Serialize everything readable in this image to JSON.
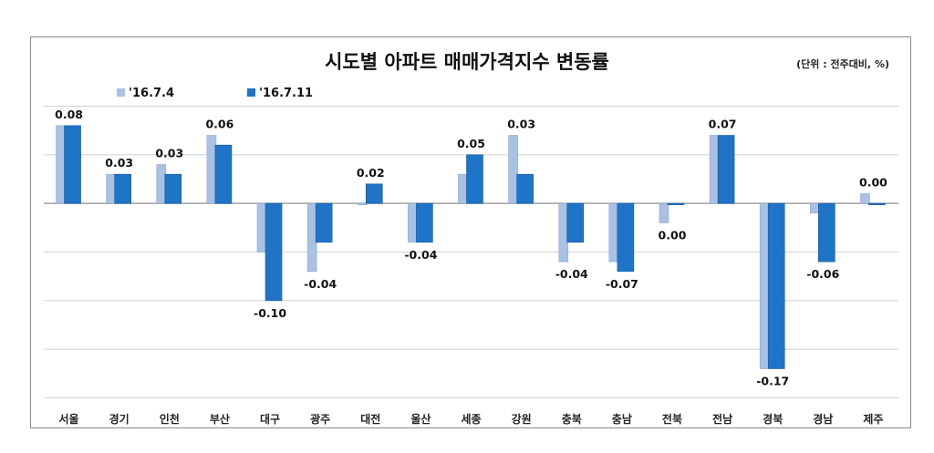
{
  "chart_data": {
    "type": "bar",
    "title": "시도별 아파트 매매가격지수 변동률",
    "unit_note": "(단위 : 전주대비, %)",
    "categories": [
      "서울",
      "경기",
      "인천",
      "부산",
      "대구",
      "광주",
      "대전",
      "울산",
      "세종",
      "강원",
      "충북",
      "충남",
      "전북",
      "전남",
      "경북",
      "경남",
      "제주"
    ],
    "series": [
      {
        "name": "'16.7.4",
        "color": "#a9c1e3",
        "values": [
          0.08,
          0.03,
          0.04,
          0.07,
          -0.05,
          -0.07,
          0.0,
          -0.04,
          0.03,
          0.07,
          -0.06,
          -0.06,
          -0.02,
          0.07,
          -0.17,
          -0.01,
          0.01
        ]
      },
      {
        "name": "'16.7.11",
        "color": "#1f74c8",
        "values": [
          0.08,
          0.03,
          0.03,
          0.06,
          -0.1,
          -0.04,
          0.02,
          -0.04,
          0.05,
          0.03,
          -0.04,
          -0.07,
          0.0,
          0.07,
          -0.17,
          -0.06,
          0.0
        ]
      }
    ],
    "data_labels": [
      "0.08",
      "0.03",
      "0.03",
      "0.06",
      "-0.10",
      "-0.04",
      "0.02",
      "-0.04",
      "0.05",
      "0.03",
      "-0.04",
      "-0.07",
      "0.00",
      "0.07",
      "-0.17",
      "-0.06",
      "0.00"
    ],
    "ylim": [
      -0.2,
      0.1
    ],
    "ytick_step": 0.05,
    "y_tick_labels_shown": false,
    "grid": true,
    "legend": "top-left"
  }
}
